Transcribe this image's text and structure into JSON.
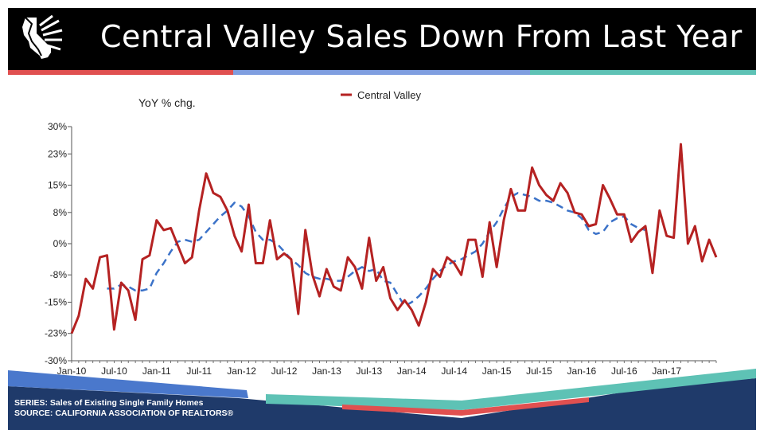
{
  "header": {
    "title": "Central Valley Sales Down From Last Year"
  },
  "footer": {
    "series_line": "SERIES: Sales of Existing Single Family Homes",
    "source_line": "SOURCE:  CALIFORNIA ASSOCIATION OF REALTORS®"
  },
  "colors": {
    "header_bg": "#000000",
    "stripe_red": "#e05050",
    "stripe_blue": "#7f9ee0",
    "stripe_teal": "#5ec2b5",
    "series_line": "#b52222",
    "trend_line": "#3b72c8",
    "footer_navy": "#1f3a6a"
  },
  "chart_data": {
    "type": "line",
    "ylabel": "YoY % chg.",
    "ylim": [
      -30,
      30
    ],
    "y_ticks": [
      30,
      23,
      15,
      8,
      0,
      -8,
      -15,
      -23,
      -30
    ],
    "y_tick_labels": [
      "30%",
      "23%",
      "15%",
      "8%",
      "0%",
      "-8%",
      "-15%",
      "-23%",
      "-30%"
    ],
    "x_tick_labels": [
      "Jan-10",
      "Jul-10",
      "Jan-11",
      "Jul-11",
      "Jan-12",
      "Jul-12",
      "Jan-13",
      "Jul-13",
      "Jan-14",
      "Jul-14",
      "Jan-15",
      "Jul-15",
      "Jan-16",
      "Jul-16",
      "Jan-17"
    ],
    "x_start": "Jan-10",
    "x_end": "Mar-17",
    "legend": {
      "position": "top",
      "entries": [
        "Central Valley"
      ]
    },
    "series": [
      {
        "name": "Central Valley",
        "color": "#b52222",
        "values": [
          -23,
          -18.5,
          -9,
          -11.5,
          -3.5,
          -3,
          -22,
          -10,
          -12,
          -19.5,
          -4,
          -3,
          6,
          3.5,
          4,
          -0.5,
          -5,
          -3.5,
          8.5,
          18,
          13,
          12,
          8.5,
          2,
          -2,
          10,
          -5,
          -5,
          6,
          -4,
          -2.5,
          -4,
          -18,
          3.5,
          -8,
          -13.5,
          -6.5,
          -11,
          -12,
          -3.5,
          -6,
          -11.5,
          1.5,
          -9.5,
          -6,
          -14,
          -17,
          -14.5,
          -17,
          -21,
          -15,
          -6.5,
          -8.5,
          -3.5,
          -5,
          -8,
          1,
          1,
          -8.5,
          5.5,
          -6,
          6,
          14,
          8.5,
          8.5,
          19.5,
          15,
          12.5,
          11,
          15.5,
          13,
          8,
          7.5,
          4.5,
          5,
          15,
          11.5,
          7.5,
          7.5,
          0.5,
          3,
          4.5,
          -7.5,
          8.5,
          2,
          1.5,
          25.5,
          0,
          4.5,
          -4.5,
          1,
          -3.5
        ]
      },
      {
        "name": "",
        "color": "#3b72c8",
        "dashed": true,
        "start_index": 5,
        "values": [
          -11.5,
          -11.5,
          -10.5,
          -11,
          -12,
          -12,
          -11.5,
          -7.5,
          -5,
          -2,
          0.5,
          1,
          0.5,
          1,
          3,
          5,
          7,
          8.5,
          10.5,
          9.5,
          7,
          3,
          1,
          1,
          0,
          -2,
          -4,
          -5.5,
          -7.5,
          -8.5,
          -9,
          -9,
          -9.5,
          -9.5,
          -8.5,
          -7,
          -6,
          -7,
          -6.5,
          -9.5,
          -10,
          -13,
          -16,
          -15,
          -13.5,
          -11.5,
          -9,
          -7,
          -5.5,
          -4.5,
          -4,
          -3,
          -2,
          0,
          3,
          5.5,
          9,
          12,
          13,
          12.5,
          12,
          11,
          11,
          10.5,
          9.5,
          8.5,
          8,
          6.5,
          3.5,
          2.5,
          3,
          5.5,
          6.5,
          7,
          5,
          4,
          3.5
        ]
      }
    ]
  }
}
